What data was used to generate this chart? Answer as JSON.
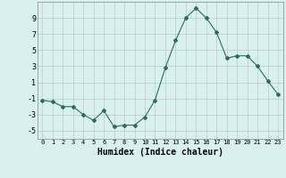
{
  "x": [
    0,
    1,
    2,
    3,
    4,
    5,
    6,
    7,
    8,
    9,
    10,
    11,
    12,
    13,
    14,
    15,
    16,
    17,
    18,
    19,
    20,
    21,
    22,
    23
  ],
  "y": [
    -1.2,
    -1.4,
    -2.0,
    -2.0,
    -3.0,
    -3.7,
    -2.5,
    -4.5,
    -4.3,
    -4.3,
    -3.3,
    -1.2,
    2.8,
    6.2,
    9.0,
    10.2,
    9.0,
    7.2,
    4.0,
    4.3,
    4.3,
    3.0,
    1.2,
    -0.5
  ],
  "line_color": "#2e6b5e",
  "marker": "D",
  "marker_size": 2,
  "bg_color": "#d8f0f0",
  "grid_color": "#c0c8c8",
  "xlabel": "Humidex (Indice chaleur)",
  "ylim": [
    -6,
    11
  ],
  "xlim": [
    -0.5,
    23.5
  ],
  "yticks": [
    -5,
    -3,
    -1,
    1,
    3,
    5,
    7,
    9
  ],
  "xticks": [
    0,
    1,
    2,
    3,
    4,
    5,
    6,
    7,
    8,
    9,
    10,
    11,
    12,
    13,
    14,
    15,
    16,
    17,
    18,
    19,
    20,
    21,
    22,
    23
  ]
}
